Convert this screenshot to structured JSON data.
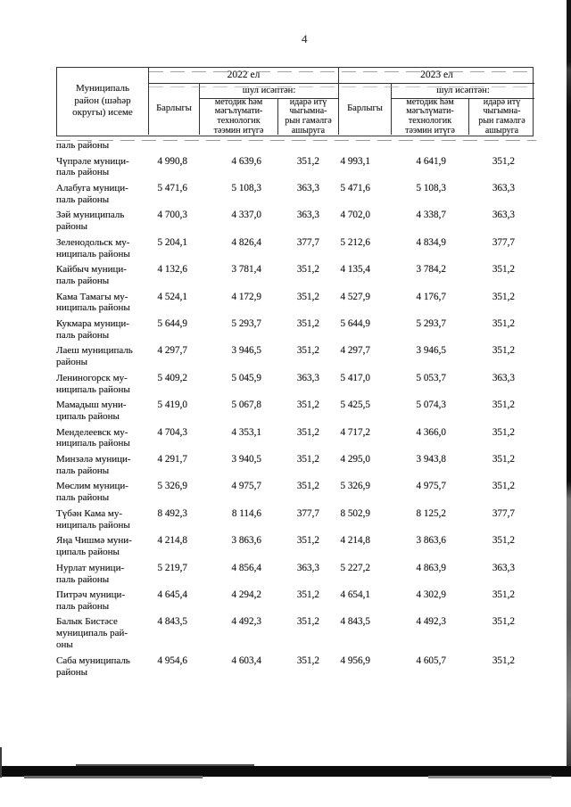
{
  "page": {
    "number": "4"
  },
  "colors": {
    "ink": "#1f1f1f",
    "table_border": "#343434",
    "scan_bar": "#0c0c0c"
  },
  "table": {
    "col1_header": "Муниципаль\nрайон (шәһәр\nокругы) исеме",
    "year_groups": [
      {
        "year": "2022 ел",
        "subtitle": "шул исәптән:",
        "col_total": "Барлыгы",
        "col_method": "методик һәм\nмәгълүмати-\nтехнологик\nтәэмин итүгә",
        "col_admin": "идарә итү\nчыгымна-\nрын гамәлгә\nашыруга"
      },
      {
        "year": "2023 ел",
        "subtitle": "шул исәптән:",
        "col_total": "Барлыгы",
        "col_method": "методик һәм\nмәгълүмати-\nтехнологик\nтәэмин итүгә",
        "col_admin": "идарә итү\nчыгымна-\nрын гамәлгә\nашыруга"
      }
    ],
    "carryover_row": {
      "name": "паль районы"
    },
    "rows": [
      {
        "name": "Чүпрәле муници-\nпаль районы",
        "values": [
          "4 990,8",
          "4 639,6",
          "351,2",
          "4 993,1",
          "4 641,9",
          "351,2"
        ]
      },
      {
        "name": "Алабуга муници-\nпаль районы",
        "values": [
          "5 471,6",
          "5 108,3",
          "363,3",
          "5 471,6",
          "5 108,3",
          "363,3"
        ]
      },
      {
        "name": "Зәй муниципаль\nрайоны",
        "values": [
          "4 700,3",
          "4 337,0",
          "363,3",
          "4 702,0",
          "4 338,7",
          "363,3"
        ]
      },
      {
        "name": "Зеленодольск му-\nниципаль районы",
        "values": [
          "5 204,1",
          "4 826,4",
          "377,7",
          "5 212,6",
          "4 834,9",
          "377,7"
        ]
      },
      {
        "name": "Кайбыч муници-\nпаль районы",
        "values": [
          "4 132,6",
          "3 781,4",
          "351,2",
          "4 135,4",
          "3 784,2",
          "351,2"
        ]
      },
      {
        "name": "Кама Тамагы му-\nниципаль районы",
        "values": [
          "4 524,1",
          "4 172,9",
          "351,2",
          "4 527,9",
          "4 176,7",
          "351,2"
        ]
      },
      {
        "name": "Кукмара муници-\nпаль районы",
        "values": [
          "5 644,9",
          "5 293,7",
          "351,2",
          "5 644,9",
          "5 293,7",
          "351,2"
        ]
      },
      {
        "name": "Лаеш муниципаль\nрайоны",
        "values": [
          "4 297,7",
          "3 946,5",
          "351,2",
          "4 297,7",
          "3 946,5",
          "351,2"
        ]
      },
      {
        "name": "Лениногорск му-\nниципаль районы",
        "values": [
          "5 409,2",
          "5 045,9",
          "363,3",
          "5 417,0",
          "5 053,7",
          "363,3"
        ]
      },
      {
        "name": "Мамадыш муни-\nципаль районы",
        "values": [
          "5 419,0",
          "5 067,8",
          "351,2",
          "5 425,5",
          "5 074,3",
          "351,2"
        ]
      },
      {
        "name": "Менделеевск му-\nниципаль районы",
        "values": [
          "4 704,3",
          "4 353,1",
          "351,2",
          "4 717,2",
          "4 366,0",
          "351,2"
        ]
      },
      {
        "name": "Минзәлә муници-\nпаль районы",
        "values": [
          "4 291,7",
          "3 940,5",
          "351,2",
          "4 295,0",
          "3 943,8",
          "351,2"
        ]
      },
      {
        "name": "Мөслим муници-\nпаль районы",
        "values": [
          "5 326,9",
          "4 975,7",
          "351,2",
          "5 326,9",
          "4 975,7",
          "351,2"
        ]
      },
      {
        "name": "Түбән Кама му-\nниципаль районы",
        "values": [
          "8 492,3",
          "8 114,6",
          "377,7",
          "8 502,9",
          "8 125,2",
          "377,7"
        ]
      },
      {
        "name": "Яңа Чишмә муни-\nципаль районы",
        "values": [
          "4 214,8",
          "3 863,6",
          "351,2",
          "4 214,8",
          "3 863,6",
          "351,2"
        ]
      },
      {
        "name": "Нурлат муници-\nпаль районы",
        "values": [
          "5 219,7",
          "4 856,4",
          "363,3",
          "5 227,2",
          "4 863,9",
          "363,3"
        ]
      },
      {
        "name": "Питрәч муници-\nпаль районы",
        "values": [
          "4 645,4",
          "4 294,2",
          "351,2",
          "4 654,1",
          "4 302,9",
          "351,2"
        ]
      },
      {
        "name": "Балык Бистәсе\nмуниципаль рай-\nоны",
        "values": [
          "4 843,5",
          "4 492,3",
          "351,2",
          "4 843,5",
          "4 492,3",
          "351,2"
        ]
      },
      {
        "name": "Саба муниципаль\nрайоны",
        "values": [
          "4 954,6",
          "4 603,4",
          "351,2",
          "4 956,9",
          "4 605,7",
          "351,2"
        ]
      }
    ]
  }
}
